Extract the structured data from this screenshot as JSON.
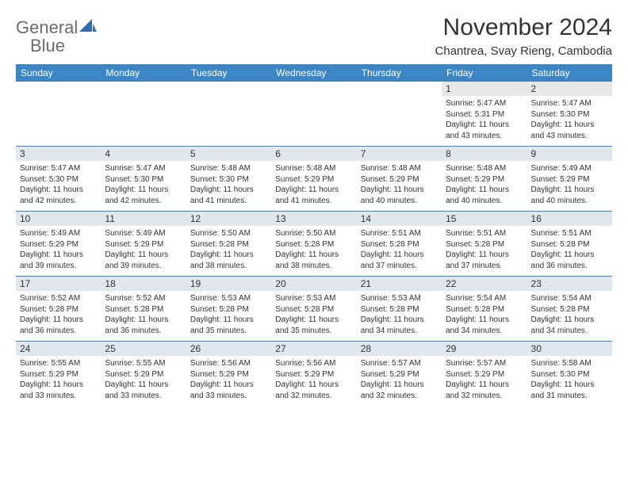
{
  "logo": {
    "word1": "General",
    "word2": "Blue"
  },
  "title": "November 2024",
  "location": "Chantrea, Svay Rieng, Cambodia",
  "colors": {
    "header_bg": "#3d86c6",
    "header_text": "#ffffff",
    "daynum_bg": "#dfe7ef",
    "daynum_bg_first": "#e8e8e8",
    "rule": "#3d86c6",
    "text": "#333333",
    "logo_gray": "#6b6b6b",
    "logo_blue": "#2f6fb0"
  },
  "day_headers": [
    "Sunday",
    "Monday",
    "Tuesday",
    "Wednesday",
    "Thursday",
    "Friday",
    "Saturday"
  ],
  "weeks": [
    [
      null,
      null,
      null,
      null,
      null,
      {
        "n": "1",
        "sr": "Sunrise: 5:47 AM",
        "ss": "Sunset: 5:31 PM",
        "d1": "Daylight: 11 hours",
        "d2": "and 43 minutes."
      },
      {
        "n": "2",
        "sr": "Sunrise: 5:47 AM",
        "ss": "Sunset: 5:30 PM",
        "d1": "Daylight: 11 hours",
        "d2": "and 43 minutes."
      }
    ],
    [
      {
        "n": "3",
        "sr": "Sunrise: 5:47 AM",
        "ss": "Sunset: 5:30 PM",
        "d1": "Daylight: 11 hours",
        "d2": "and 42 minutes."
      },
      {
        "n": "4",
        "sr": "Sunrise: 5:47 AM",
        "ss": "Sunset: 5:30 PM",
        "d1": "Daylight: 11 hours",
        "d2": "and 42 minutes."
      },
      {
        "n": "5",
        "sr": "Sunrise: 5:48 AM",
        "ss": "Sunset: 5:30 PM",
        "d1": "Daylight: 11 hours",
        "d2": "and 41 minutes."
      },
      {
        "n": "6",
        "sr": "Sunrise: 5:48 AM",
        "ss": "Sunset: 5:29 PM",
        "d1": "Daylight: 11 hours",
        "d2": "and 41 minutes."
      },
      {
        "n": "7",
        "sr": "Sunrise: 5:48 AM",
        "ss": "Sunset: 5:29 PM",
        "d1": "Daylight: 11 hours",
        "d2": "and 40 minutes."
      },
      {
        "n": "8",
        "sr": "Sunrise: 5:48 AM",
        "ss": "Sunset: 5:29 PM",
        "d1": "Daylight: 11 hours",
        "d2": "and 40 minutes."
      },
      {
        "n": "9",
        "sr": "Sunrise: 5:49 AM",
        "ss": "Sunset: 5:29 PM",
        "d1": "Daylight: 11 hours",
        "d2": "and 40 minutes."
      }
    ],
    [
      {
        "n": "10",
        "sr": "Sunrise: 5:49 AM",
        "ss": "Sunset: 5:29 PM",
        "d1": "Daylight: 11 hours",
        "d2": "and 39 minutes."
      },
      {
        "n": "11",
        "sr": "Sunrise: 5:49 AM",
        "ss": "Sunset: 5:29 PM",
        "d1": "Daylight: 11 hours",
        "d2": "and 39 minutes."
      },
      {
        "n": "12",
        "sr": "Sunrise: 5:50 AM",
        "ss": "Sunset: 5:28 PM",
        "d1": "Daylight: 11 hours",
        "d2": "and 38 minutes."
      },
      {
        "n": "13",
        "sr": "Sunrise: 5:50 AM",
        "ss": "Sunset: 5:28 PM",
        "d1": "Daylight: 11 hours",
        "d2": "and 38 minutes."
      },
      {
        "n": "14",
        "sr": "Sunrise: 5:51 AM",
        "ss": "Sunset: 5:28 PM",
        "d1": "Daylight: 11 hours",
        "d2": "and 37 minutes."
      },
      {
        "n": "15",
        "sr": "Sunrise: 5:51 AM",
        "ss": "Sunset: 5:28 PM",
        "d1": "Daylight: 11 hours",
        "d2": "and 37 minutes."
      },
      {
        "n": "16",
        "sr": "Sunrise: 5:51 AM",
        "ss": "Sunset: 5:28 PM",
        "d1": "Daylight: 11 hours",
        "d2": "and 36 minutes."
      }
    ],
    [
      {
        "n": "17",
        "sr": "Sunrise: 5:52 AM",
        "ss": "Sunset: 5:28 PM",
        "d1": "Daylight: 11 hours",
        "d2": "and 36 minutes."
      },
      {
        "n": "18",
        "sr": "Sunrise: 5:52 AM",
        "ss": "Sunset: 5:28 PM",
        "d1": "Daylight: 11 hours",
        "d2": "and 36 minutes."
      },
      {
        "n": "19",
        "sr": "Sunrise: 5:53 AM",
        "ss": "Sunset: 5:28 PM",
        "d1": "Daylight: 11 hours",
        "d2": "and 35 minutes."
      },
      {
        "n": "20",
        "sr": "Sunrise: 5:53 AM",
        "ss": "Sunset: 5:28 PM",
        "d1": "Daylight: 11 hours",
        "d2": "and 35 minutes."
      },
      {
        "n": "21",
        "sr": "Sunrise: 5:53 AM",
        "ss": "Sunset: 5:28 PM",
        "d1": "Daylight: 11 hours",
        "d2": "and 34 minutes."
      },
      {
        "n": "22",
        "sr": "Sunrise: 5:54 AM",
        "ss": "Sunset: 5:28 PM",
        "d1": "Daylight: 11 hours",
        "d2": "and 34 minutes."
      },
      {
        "n": "23",
        "sr": "Sunrise: 5:54 AM",
        "ss": "Sunset: 5:28 PM",
        "d1": "Daylight: 11 hours",
        "d2": "and 34 minutes."
      }
    ],
    [
      {
        "n": "24",
        "sr": "Sunrise: 5:55 AM",
        "ss": "Sunset: 5:29 PM",
        "d1": "Daylight: 11 hours",
        "d2": "and 33 minutes."
      },
      {
        "n": "25",
        "sr": "Sunrise: 5:55 AM",
        "ss": "Sunset: 5:29 PM",
        "d1": "Daylight: 11 hours",
        "d2": "and 33 minutes."
      },
      {
        "n": "26",
        "sr": "Sunrise: 5:56 AM",
        "ss": "Sunset: 5:29 PM",
        "d1": "Daylight: 11 hours",
        "d2": "and 33 minutes."
      },
      {
        "n": "27",
        "sr": "Sunrise: 5:56 AM",
        "ss": "Sunset: 5:29 PM",
        "d1": "Daylight: 11 hours",
        "d2": "and 32 minutes."
      },
      {
        "n": "28",
        "sr": "Sunrise: 5:57 AM",
        "ss": "Sunset: 5:29 PM",
        "d1": "Daylight: 11 hours",
        "d2": "and 32 minutes."
      },
      {
        "n": "29",
        "sr": "Sunrise: 5:57 AM",
        "ss": "Sunset: 5:29 PM",
        "d1": "Daylight: 11 hours",
        "d2": "and 32 minutes."
      },
      {
        "n": "30",
        "sr": "Sunrise: 5:58 AM",
        "ss": "Sunset: 5:30 PM",
        "d1": "Daylight: 11 hours",
        "d2": "and 31 minutes."
      }
    ]
  ]
}
